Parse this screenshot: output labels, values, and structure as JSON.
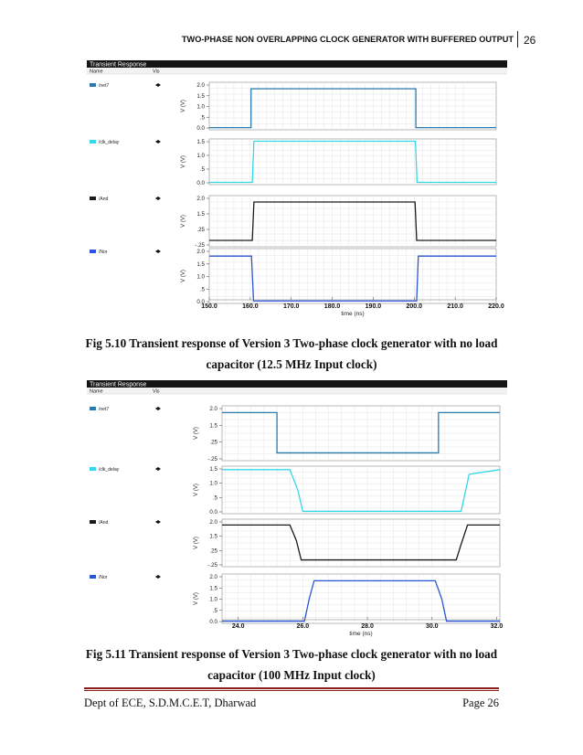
{
  "header": {
    "title": "TWO-PHASE NON OVERLAPPING CLOCK GENERATOR WITH BUFFERED OUTPUT",
    "page_number": "26"
  },
  "figures": [
    {
      "window_title": "Transient Response",
      "col_name": "Name",
      "col_vis": "Vis",
      "caption_line1": "Fig 5.10 Transient response of Version 3 Two-phase clock generator with no load",
      "caption_line2": "capacitor (12.5 MHz Input clock)",
      "x_axis_label": "time (ns)",
      "x_ticks": [
        "150.0",
        "160.0",
        "170.0",
        "180.0",
        "190.0",
        "200.0",
        "210.0",
        "220.0"
      ]
    },
    {
      "window_title": "Transient Response",
      "col_name": "Name",
      "col_vis": "Vis",
      "caption_line1": "Fig 5.11 Transient response of Version 3 Two-phase clock generator with no load",
      "caption_line2": "capacitor (100 MHz Input clock)",
      "x_axis_label": "time (ns)",
      "x_ticks": [
        "24.0",
        "26.0",
        "28.0",
        "30.0",
        "32.0"
      ]
    }
  ],
  "footer": {
    "left": "Dept of ECE, S.D.M.C.E.T, Dharwad",
    "right": "Page 26"
  },
  "chart_data": [
    {
      "type": "line",
      "title": "Transient Response",
      "xlabel": "time (ns)",
      "xlim": [
        150,
        220
      ],
      "y_unit_label": "V (V)",
      "series": [
        {
          "name": "/net7",
          "color": "#2a7ab0",
          "yticks": [
            "2.0",
            "1.5",
            "1.0",
            ".5",
            "0.0"
          ],
          "ylim": [
            -0.1,
            2.1
          ],
          "x": [
            150,
            160.2,
            160.2,
            200.4,
            200.4,
            220
          ],
          "y": [
            0.0,
            0.0,
            1.8,
            1.8,
            0.0,
            0.0
          ]
        },
        {
          "name": "/clk_delay",
          "color": "#33d8e8",
          "yticks": [
            "1.5",
            "1.0",
            ".5",
            "0.0"
          ],
          "ylim": [
            -0.1,
            1.9
          ],
          "x": [
            150,
            160.5,
            160.9,
            200.3,
            200.7,
            220
          ],
          "y": [
            0.0,
            0.0,
            1.8,
            1.8,
            0.0,
            0.0
          ]
        },
        {
          "name": "/And",
          "color": "#1a1a1a",
          "yticks": [
            "2.0",
            "1.5",
            ".25",
            "-.25"
          ],
          "ylim": [
            -0.3,
            2.1
          ],
          "x": [
            150,
            160.5,
            160.9,
            200.2,
            200.6,
            220
          ],
          "y": [
            0.0,
            0.0,
            1.8,
            1.8,
            0.0,
            0.0
          ]
        },
        {
          "name": "/Nor",
          "color": "#2a55d8",
          "yticks": [
            "2.0",
            "1.5",
            "1.0",
            ".5",
            "0.0"
          ],
          "ylim": [
            -0.1,
            2.1
          ],
          "x": [
            150,
            160.3,
            160.8,
            200.6,
            201.0,
            220
          ],
          "y": [
            1.8,
            1.8,
            0.0,
            0.0,
            1.8,
            1.8
          ]
        }
      ]
    },
    {
      "type": "line",
      "title": "Transient Response",
      "xlabel": "time (ns)",
      "xlim": [
        23.5,
        32.1
      ],
      "y_unit_label": "V (V)",
      "series": [
        {
          "name": "/net7",
          "color": "#2a7ab0",
          "yticks": [
            "2.0",
            "1.5",
            ".25",
            "-.25"
          ],
          "ylim": [
            -0.35,
            2.1
          ],
          "x": [
            23.5,
            25.2,
            25.2,
            30.2,
            30.2,
            32.1
          ],
          "y": [
            1.8,
            1.8,
            0.0,
            0.0,
            1.8,
            1.8
          ]
        },
        {
          "name": "/clk_delay",
          "color": "#33d8e8",
          "yticks": [
            "1.5",
            "1.0",
            ".5",
            "0.0"
          ],
          "ylim": [
            -0.1,
            1.95
          ],
          "x": [
            23.5,
            25.6,
            25.85,
            26.0,
            30.7,
            30.9,
            31.15,
            32.1
          ],
          "y": [
            1.8,
            1.8,
            0.9,
            0.0,
            0.0,
            0.0,
            1.6,
            1.8
          ]
        },
        {
          "name": "/And",
          "color": "#1a1a1a",
          "yticks": [
            "2.0",
            "1.5",
            ".25",
            "-.25"
          ],
          "ylim": [
            -0.35,
            2.1
          ],
          "x": [
            23.5,
            25.6,
            25.8,
            25.95,
            30.75,
            30.9,
            31.1,
            32.1
          ],
          "y": [
            1.8,
            1.8,
            1.0,
            0.0,
            0.0,
            0.8,
            1.8,
            1.8
          ]
        },
        {
          "name": "/Nor",
          "color": "#2a55d8",
          "yticks": [
            "2.0",
            "1.5",
            "1.0",
            ".5",
            "0.0"
          ],
          "ylim": [
            -0.1,
            2.1
          ],
          "x": [
            23.5,
            26.05,
            26.2,
            26.35,
            30.1,
            30.3,
            30.45,
            32.1
          ],
          "y": [
            0.0,
            0.0,
            1.0,
            1.8,
            1.8,
            1.0,
            0.0,
            0.0
          ]
        }
      ]
    }
  ]
}
